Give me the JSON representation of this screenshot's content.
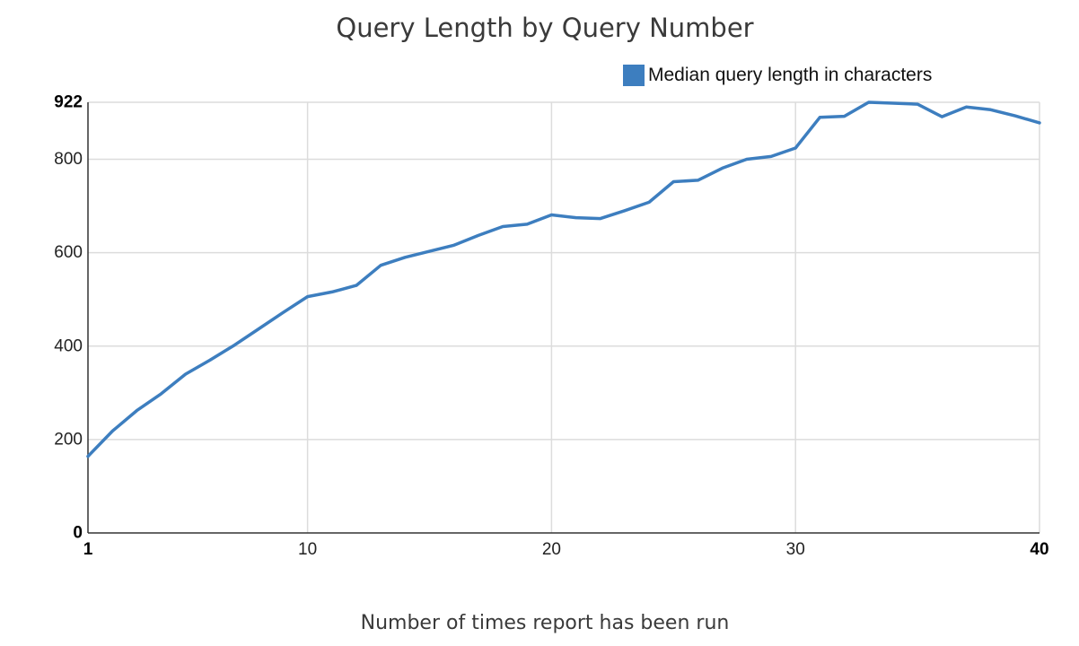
{
  "chart_data": {
    "type": "line",
    "title": "Query Length by Query Number",
    "xlabel": "Number of times report has been run",
    "ylabel": "",
    "xlim": [
      1,
      40
    ],
    "ylim": [
      0,
      922
    ],
    "x_ticks": [
      1,
      10,
      20,
      30,
      40
    ],
    "y_ticks": [
      0,
      200,
      400,
      600,
      800,
      922
    ],
    "grid": true,
    "legend_position": "top-right",
    "series": [
      {
        "name": "Median query length in characters",
        "color": "#3d7ebf",
        "x": [
          1,
          2,
          3,
          4,
          5,
          6,
          7,
          8,
          9,
          10,
          11,
          12,
          13,
          14,
          15,
          16,
          17,
          18,
          19,
          20,
          21,
          22,
          23,
          24,
          25,
          26,
          27,
          28,
          29,
          30,
          31,
          32,
          33,
          34,
          35,
          36,
          37,
          38,
          39,
          40
        ],
        "y": [
          164,
          218,
          262,
          298,
          340,
          370,
          402,
          437,
          472,
          506,
          516,
          530,
          573,
          590,
          603,
          616,
          637,
          656,
          661,
          681,
          675,
          673,
          690,
          708,
          752,
          755,
          781,
          800,
          806,
          824,
          890,
          892,
          922,
          920,
          918,
          891,
          912,
          906,
          893,
          878
        ]
      }
    ]
  }
}
